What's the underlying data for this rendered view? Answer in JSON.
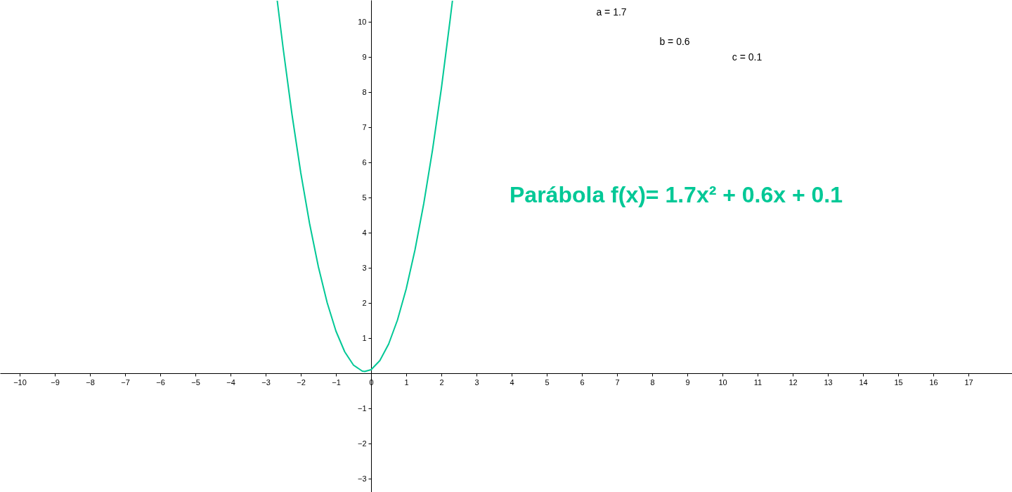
{
  "chart_data": {
    "type": "line",
    "title": "Parábola f(x)= 1.7x² + 0.6x + 0.1",
    "annotations": [
      "a = 1.7",
      "b = 0.6",
      "c = 0.1"
    ],
    "xlim": [
      -10.56,
      18.24
    ],
    "ylim": [
      -3.38,
      10.62
    ],
    "xticks": [
      -10,
      -9,
      -8,
      -7,
      -6,
      -5,
      -4,
      -3,
      -2,
      -1,
      0,
      1,
      2,
      3,
      4,
      5,
      6,
      7,
      8,
      9,
      10,
      11,
      12,
      13,
      14,
      15,
      16,
      17
    ],
    "yticks": [
      -3,
      -2,
      -1,
      1,
      2,
      3,
      4,
      5,
      6,
      7,
      8,
      9,
      10
    ],
    "grid": false,
    "marker": "none",
    "line_style": "solid",
    "series": [
      {
        "color": "#00c896",
        "x": [
          -2.67,
          -2.5,
          -2.25,
          -2,
          -1.75,
          -1.5,
          -1.25,
          -1,
          -0.75,
          -0.5,
          -0.25,
          -0.18,
          0,
          0.25,
          0.5,
          0.75,
          1,
          1.25,
          1.5,
          1.75,
          2,
          2.25,
          2.316
        ],
        "values": [
          10.6,
          9.23,
          7.36,
          5.7,
          4.26,
          3.03,
          2.01,
          1.2,
          0.61,
          0.23,
          0.06,
          0.05,
          0.1,
          0.36,
          0.83,
          1.51,
          2.4,
          3.51,
          4.83,
          6.36,
          8.1,
          10.06,
          10.6
        ]
      }
    ]
  }
}
